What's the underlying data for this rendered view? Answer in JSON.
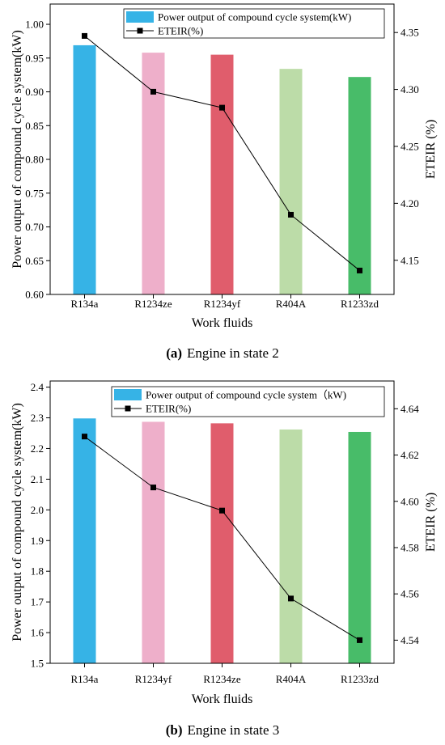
{
  "chart_data": [
    {
      "type": "bar",
      "caption_tag": "(a)",
      "caption_text": "Engine in state 2",
      "categories": [
        "R134a",
        "R1234ze",
        "R1234yf",
        "R404A",
        "R1233zd"
      ],
      "xlabel": "Work fluids",
      "ylabel": "Power output of compound cycle system(kW)",
      "y2label": "ETEIR (%)",
      "ylim": [
        0.6,
        1.03
      ],
      "y2lim": [
        4.12,
        4.375
      ],
      "yticks": [
        "0.60",
        "0.65",
        "0.70",
        "0.75",
        "0.80",
        "0.85",
        "0.90",
        "0.95",
        "1.00"
      ],
      "y2ticks": [
        "4.15",
        "4.20",
        "4.25",
        "4.30",
        "4.35"
      ],
      "bar_colors": [
        "#36b3e6",
        "#eeafca",
        "#e05d6c",
        "#bcdca8",
        "#48bc69"
      ],
      "legend_position": "top",
      "series": [
        {
          "name": "Power output of compound cycle system(kW)",
          "kind": "bar",
          "axis": "left",
          "values": [
            0.969,
            0.958,
            0.955,
            0.934,
            0.922
          ]
        },
        {
          "name": "ETEIR(%)",
          "kind": "line",
          "axis": "right",
          "values": [
            4.347,
            4.298,
            4.284,
            4.19,
            4.141
          ]
        }
      ]
    },
    {
      "type": "bar",
      "caption_tag": "(b)",
      "caption_text": "Engine in state 3",
      "categories": [
        "R134a",
        "R1234yf",
        "R1234ze",
        "R404A",
        "R1233zd"
      ],
      "xlabel": "Work fluids",
      "ylabel": "Power output of compound cycle system(kW)",
      "y2label": "ETEIR (%)",
      "ylim": [
        1.5,
        2.42
      ],
      "y2lim": [
        4.53,
        4.652
      ],
      "yticks": [
        "1.5",
        "1.6",
        "1.7",
        "1.8",
        "1.9",
        "2.0",
        "2.1",
        "2.2",
        "2.3",
        "2.4"
      ],
      "y2ticks": [
        "4.54",
        "4.56",
        "4.58",
        "4.60",
        "4.62",
        "4.64"
      ],
      "bar_colors": [
        "#36b3e6",
        "#eeafca",
        "#e05d6c",
        "#bcdca8",
        "#48bc69"
      ],
      "legend_position": "top",
      "series": [
        {
          "name": "Power output of compound cycle system（kW)",
          "kind": "bar",
          "axis": "left",
          "values": [
            2.298,
            2.287,
            2.282,
            2.262,
            2.254
          ]
        },
        {
          "name": "ETEIR(%)",
          "kind": "line",
          "axis": "right",
          "values": [
            4.628,
            4.606,
            4.596,
            4.558,
            4.54
          ]
        }
      ]
    }
  ]
}
